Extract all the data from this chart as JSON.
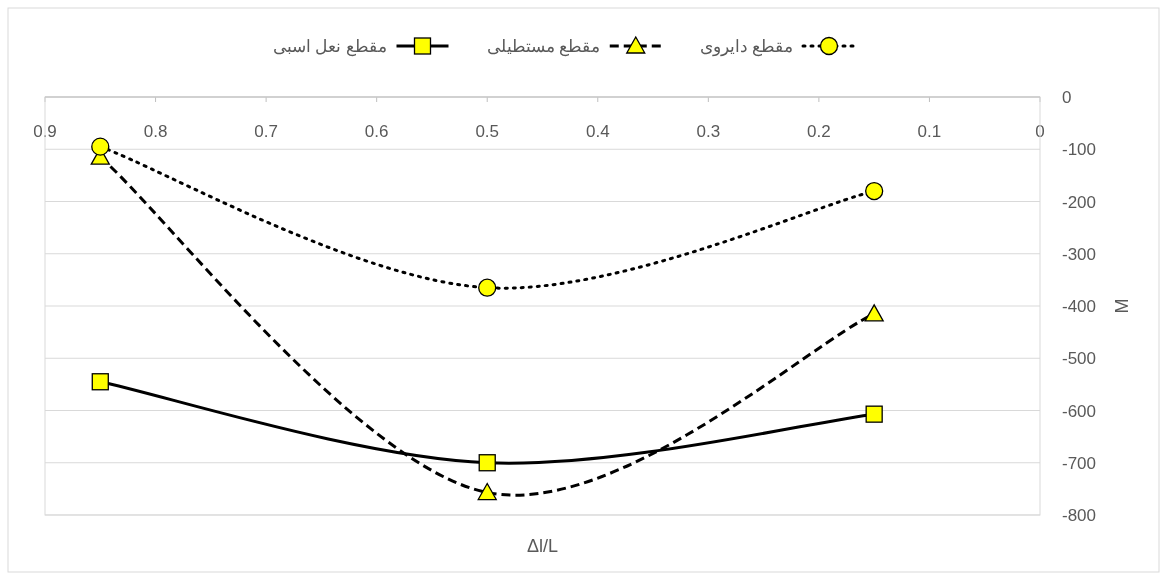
{
  "chart_data": {
    "type": "line",
    "xlabel": "Δl/L",
    "ylabel": "M",
    "x": [
      0.85,
      0.5,
      0.15
    ],
    "series": [
      {
        "name": "مقطع نعل اسبی",
        "color": "#000000",
        "line_style": "solid",
        "marker": "square",
        "values": [
          -545,
          -700,
          -607
        ]
      },
      {
        "name": "مقطع مستطیلی",
        "color": "#000000",
        "line_style": "dashed",
        "marker": "triangle",
        "values": [
          -115,
          -757,
          -415
        ]
      },
      {
        "name": "مقطع دایروی",
        "color": "#000000",
        "line_style": "dotted",
        "marker": "circle",
        "values": [
          -95,
          -365,
          -180
        ]
      }
    ],
    "xlim": [
      0.9,
      0
    ],
    "xticks": [
      0.9,
      0.8,
      0.7,
      0.6,
      0.5,
      0.4,
      0.3,
      0.2,
      0.1,
      0
    ],
    "ylim": [
      -800,
      0
    ],
    "yticks": [
      0,
      -100,
      -200,
      -300,
      -400,
      -500,
      -600,
      -700,
      -800
    ],
    "grid": "y",
    "legend": "top"
  }
}
